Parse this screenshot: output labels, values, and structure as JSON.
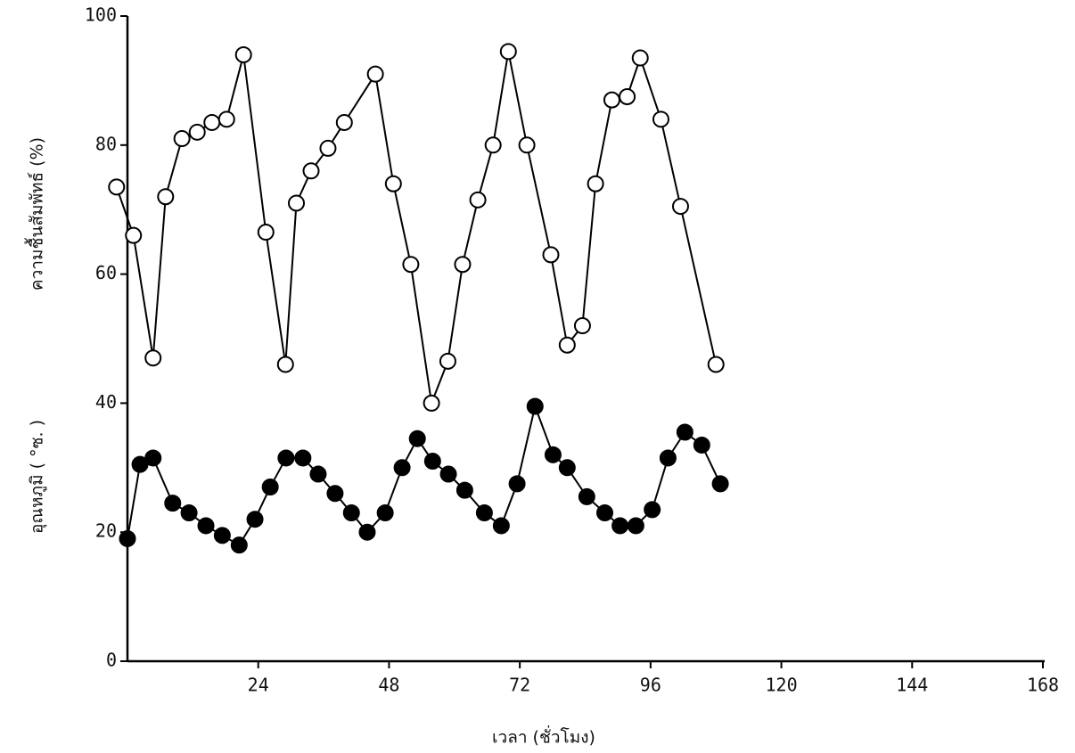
{
  "chart_data": {
    "type": "line",
    "xlabel": "เวลา (ชั่วโมง)",
    "ylabels": [
      "ความชื้นสัมพัทธ์ (%)",
      "อุณหภูมิ ( °ซ. )"
    ],
    "xlim": [
      0,
      168
    ],
    "xticks": [
      24,
      48,
      72,
      96,
      120,
      144,
      168
    ],
    "ylim": [
      0,
      100
    ],
    "yticks": [
      0,
      20,
      40,
      60,
      80,
      100
    ],
    "series": [
      {
        "color": "#000000",
        "marker_fill": "#ffffff",
        "x": [
          -2,
          1.1,
          4.7,
          7,
          10,
          12.8,
          15.5,
          18.2,
          21.3,
          25.4,
          29,
          31,
          33.7,
          36.8,
          39.8,
          45.5,
          48.8,
          52,
          55.8,
          58.8,
          61.5,
          64.3,
          67.1,
          69.9,
          73.3,
          77.7,
          80.7,
          83.5,
          85.9,
          88.9,
          91.7,
          94.1,
          97.9,
          101.5,
          108
        ],
        "values": [
          73.5,
          66,
          47,
          72,
          81,
          82,
          83.5,
          84,
          94,
          66.5,
          46,
          71,
          76,
          79.5,
          83.5,
          91,
          74,
          61.5,
          40,
          46.5,
          61.5,
          71.5,
          80,
          94.5,
          80,
          63,
          49,
          52,
          74,
          87,
          87.5,
          93.5,
          84,
          70.5,
          46
        ]
      },
      {
        "color": "#000000",
        "marker_fill": "#000000",
        "x": [
          0,
          2.3,
          4.7,
          8.3,
          11.3,
          14.4,
          17.4,
          20.5,
          23.4,
          26.2,
          29.1,
          32.2,
          35,
          38.1,
          41.1,
          44,
          47.3,
          50.4,
          53.2,
          56,
          58.9,
          61.9,
          65.5,
          68.6,
          71.5,
          74.8,
          78.1,
          80.7,
          84.3,
          87.6,
          90.4,
          93.3,
          96.3,
          99.2,
          102.3,
          105.4,
          108.8
        ],
        "values": [
          19,
          30.5,
          31.5,
          24.5,
          23,
          21,
          19.5,
          18,
          22,
          27,
          31.5,
          31.5,
          29,
          26,
          23,
          20,
          23,
          30,
          34.5,
          31,
          29,
          26.5,
          23,
          21,
          27.5,
          39.5,
          32,
          30,
          25.5,
          23,
          21,
          21,
          23.5,
          31.5,
          35.5,
          33.5,
          27.5
        ]
      }
    ]
  }
}
